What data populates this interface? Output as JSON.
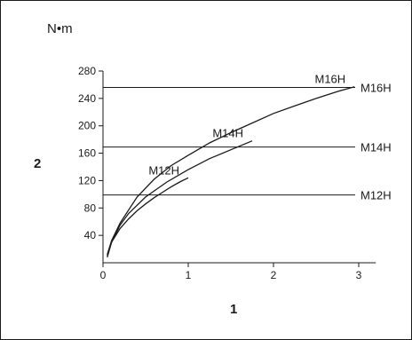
{
  "chart_data": {
    "type": "line",
    "unit_label": "N•m",
    "ylabel": "2",
    "xlabel": "1",
    "xlim": [
      0,
      3.2
    ],
    "ylim": [
      0,
      280
    ],
    "x_ticks": [
      0,
      1,
      2,
      3
    ],
    "y_ticks": [
      40,
      80,
      120,
      160,
      200,
      240,
      280
    ],
    "grid": false,
    "series": [
      {
        "name": "M12H",
        "x": [
          0.05,
          0.1,
          0.2,
          0.3,
          0.4,
          0.5,
          0.6,
          0.7,
          0.8,
          0.9,
          1.0
        ],
        "y": [
          8,
          30,
          50,
          64,
          76,
          86,
          95,
          103,
          111,
          118,
          124
        ],
        "limit": 99,
        "curve_label": "M12H",
        "limit_label": "M12H"
      },
      {
        "name": "M14H",
        "x": [
          0.05,
          0.1,
          0.2,
          0.3,
          0.5,
          0.75,
          1.0,
          1.25,
          1.5,
          1.75
        ],
        "y": [
          10,
          30,
          55,
          72,
          96,
          118,
          136,
          152,
          165,
          178
        ],
        "limit": 169,
        "curve_label": "M14H",
        "limit_label": "M14H"
      },
      {
        "name": "M16H",
        "x": [
          0.05,
          0.1,
          0.2,
          0.4,
          0.6,
          0.8,
          1.0,
          1.25,
          1.5,
          1.75,
          2.0,
          2.25,
          2.5,
          2.75,
          2.95
        ],
        "y": [
          12,
          32,
          58,
          96,
          122,
          142,
          157,
          175,
          190,
          204,
          218,
          229,
          240,
          250,
          257
        ],
        "limit": 256,
        "curve_label": "M16H",
        "limit_label": "M16H"
      }
    ]
  }
}
